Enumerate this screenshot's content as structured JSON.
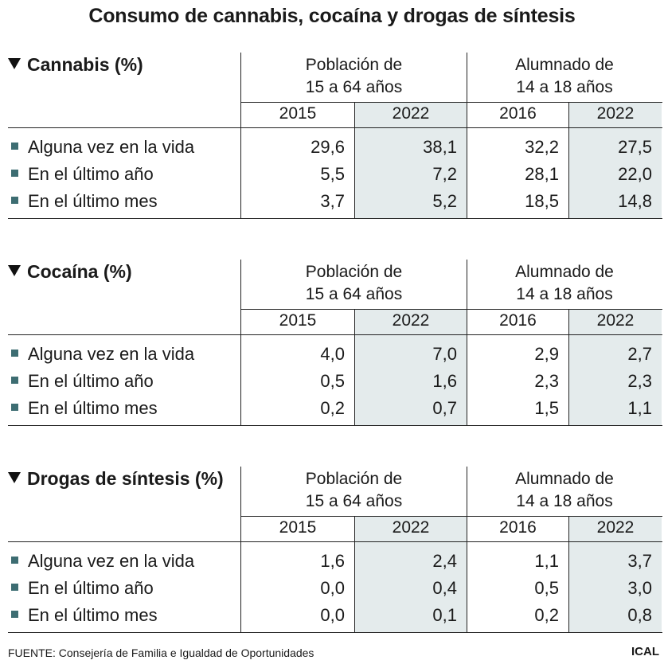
{
  "title": "Consumo de cannabis, cocaína y drogas de síntesis",
  "group_headers": {
    "poblacion": {
      "line1": "Población de",
      "line2": "15 a 64 años"
    },
    "alumnado": {
      "line1": "Alumnado de",
      "line2": "14 a 18 años"
    }
  },
  "years": [
    "2015",
    "2022",
    "2016",
    "2022"
  ],
  "row_labels": [
    "Alguna vez en la vida",
    "En el último año",
    "En el último mes"
  ],
  "sections": [
    {
      "title": "Cannabis (%)",
      "rows": [
        [
          "29,6",
          "38,1",
          "32,2",
          "27,5"
        ],
        [
          "5,5",
          "7,2",
          "28,1",
          "22,0"
        ],
        [
          "3,7",
          "5,2",
          "18,5",
          "14,8"
        ]
      ]
    },
    {
      "title": "Cocaína (%)",
      "rows": [
        [
          "4,0",
          "7,0",
          "2,9",
          "2,7"
        ],
        [
          "0,5",
          "1,6",
          "2,3",
          "2,3"
        ],
        [
          "0,2",
          "0,7",
          "1,5",
          "1,1"
        ]
      ]
    },
    {
      "title": "Drogas de síntesis (%)",
      "rows": [
        [
          "1,6",
          "2,4",
          "1,1",
          "3,7"
        ],
        [
          "0,0",
          "0,4",
          "0,5",
          "3,0"
        ],
        [
          "0,0",
          "0,1",
          "0,2",
          "0,8"
        ]
      ]
    }
  ],
  "footer": "FUENTE: Consejería de Familia e Igualdad de Oportunidades",
  "brand": "ICAL",
  "colors": {
    "shade": "#e4ebec",
    "bullet": "#3d6d72"
  }
}
